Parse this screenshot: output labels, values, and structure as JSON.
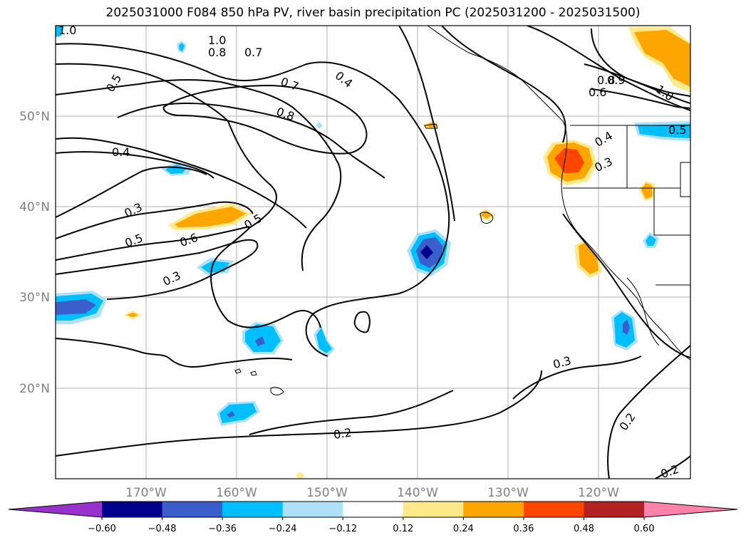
{
  "title": "2025031000 F084 850 hPa PV, river basin precipitation PC (2025031200 - 2025031500)",
  "map": {
    "lon_labels": [
      "170°W",
      "160°W",
      "150°W",
      "140°W",
      "130°W",
      "120°W"
    ],
    "lat_labels": [
      "50°N",
      "40°N",
      "30°N",
      "20°N"
    ],
    "contour_labels": [
      "1.0",
      "1.0",
      "0.8",
      "0.7",
      "0.5",
      "0.7",
      "0.4",
      "0.8",
      "0.8",
      "0.9",
      "1.0",
      "0.6",
      "0.4",
      "0.5",
      "0.3",
      "0.3",
      "0.5",
      "0.6",
      "0.5",
      "0.3",
      "0.4",
      "0.3",
      "0.2",
      "0.2",
      "0.2"
    ]
  },
  "colorbar": {
    "ticks": [
      "−0.60",
      "−0.48",
      "−0.36",
      "−0.24",
      "−0.12",
      "0.12",
      "0.24",
      "0.36",
      "0.48",
      "0.60"
    ],
    "colors": [
      "#9932CC",
      "#00008B",
      "#3A5FCD",
      "#00BFFF",
      "#ADE1FA",
      "#FFFFFF",
      "#FFE98A",
      "#FFA500",
      "#FF4500",
      "#B22222",
      "#FF82AB"
    ]
  }
}
